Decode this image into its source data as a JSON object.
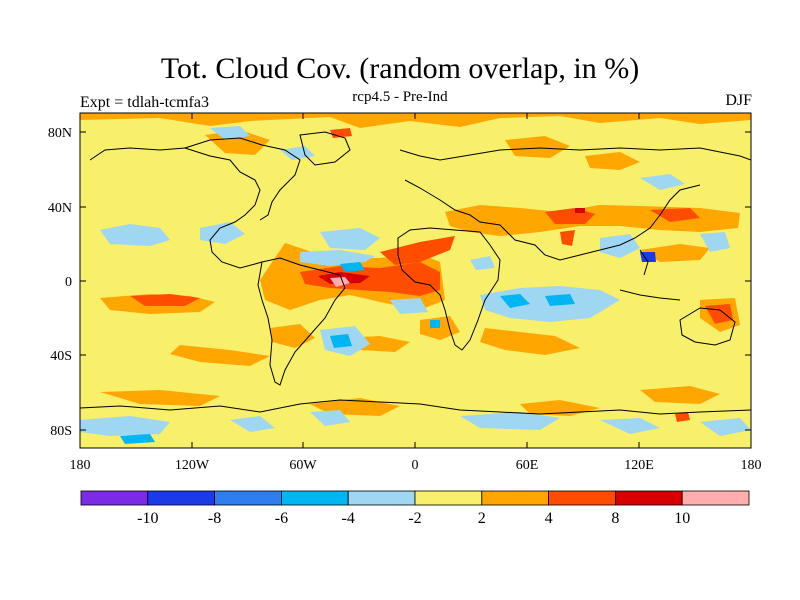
{
  "header": {
    "title": "Tot. Cloud Cov. (random overlap, in %)",
    "subtitle": "rcp4.5 - Pre-Ind",
    "left_label": "Expt = tdlah-tcmfa3",
    "right_label": "DJF"
  },
  "map": {
    "y_ticks": [
      "80N",
      "40N",
      "0",
      "40S",
      "80S"
    ],
    "x_ticks": [
      "180",
      "120W",
      "60W",
      "0",
      "60E",
      "120E",
      "180"
    ]
  },
  "legend": {
    "levels": [
      "-10",
      "-8",
      "-6",
      "-4",
      "-2",
      "2",
      "4",
      "8",
      "10"
    ],
    "colors": [
      "#7b2ae6",
      "#1c3be8",
      "#2f7ef0",
      "#00b6f2",
      "#9fd6f2",
      "#f8ef6a",
      "#ffa600",
      "#ff4d00",
      "#d60000",
      "#ffadad"
    ]
  }
}
